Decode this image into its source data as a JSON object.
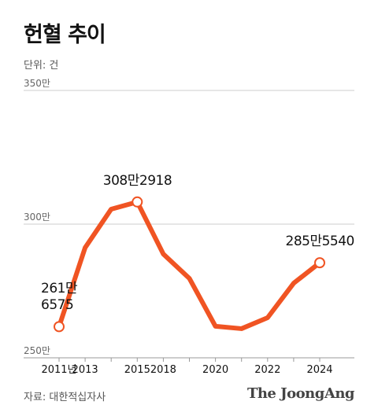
{
  "chart_data": {
    "type": "line",
    "title": "헌혈 추이",
    "subtitle": "단위: 건",
    "source": "자료: 대한적십자사",
    "brand": "The JoongAng",
    "categories": [
      "2011년",
      "2013",
      null,
      "2015",
      "2018",
      null,
      "2020",
      null,
      "2022",
      null,
      "2024"
    ],
    "values": [
      261.6575,
      291.2,
      305.6,
      308.2918,
      288.8,
      279.7,
      261.8,
      260.9,
      265,
      277.9,
      285.554
    ],
    "value_labels": [
      "261만\n6575",
      null,
      null,
      "308만2918",
      null,
      null,
      null,
      null,
      null,
      null,
      "285만5540"
    ],
    "color": "#f05423",
    "ylim": [
      250,
      350
    ],
    "yticks": [
      {
        "value": 250,
        "label": "250만"
      },
      {
        "value": 300,
        "label": "300만"
      },
      {
        "value": 350,
        "label": "350만"
      }
    ],
    "grid": true
  }
}
